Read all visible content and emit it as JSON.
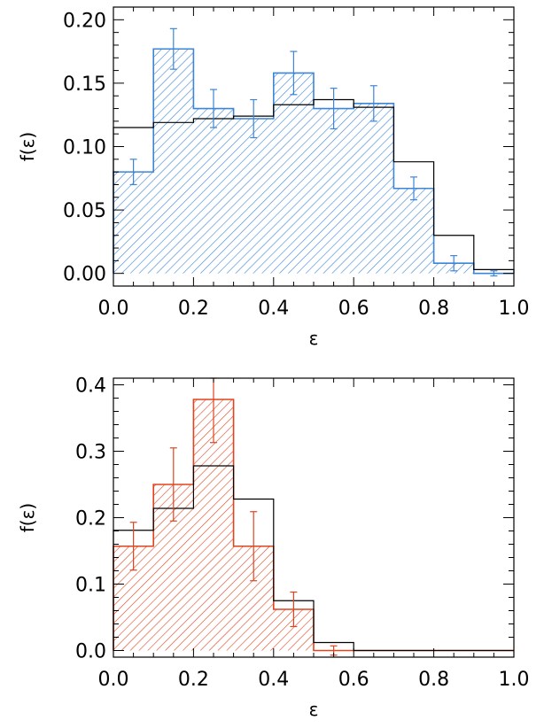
{
  "chart_data": [
    {
      "type": "bar",
      "subtype": "histogram",
      "xlabel": "ε",
      "ylabel": "f(ε)",
      "xlim": [
        0.0,
        1.0
      ],
      "ylim": [
        -0.01,
        0.21
      ],
      "xticks": [
        "0.0",
        "0.2",
        "0.4",
        "0.6",
        "0.8",
        "1.0"
      ],
      "yticks": [
        "0.00",
        "0.05",
        "0.10",
        "0.15",
        "0.20"
      ],
      "bin_edges": [
        0.0,
        0.1,
        0.2,
        0.3,
        0.4,
        0.5,
        0.6,
        0.7,
        0.8,
        0.9,
        1.0
      ],
      "series": [
        {
          "style": "hatched",
          "color": "#3d85d6",
          "values": [
            0.08,
            0.177,
            0.13,
            0.122,
            0.158,
            0.13,
            0.134,
            0.067,
            0.008,
            0.0
          ],
          "errors": [
            0.01,
            0.016,
            0.015,
            0.015,
            0.017,
            0.016,
            0.014,
            0.009,
            0.006,
            0.002
          ]
        },
        {
          "style": "outline",
          "color": "#000000",
          "values": [
            0.115,
            0.119,
            0.122,
            0.124,
            0.133,
            0.137,
            0.131,
            0.088,
            0.03,
            0.003
          ]
        }
      ]
    },
    {
      "type": "bar",
      "subtype": "histogram",
      "xlabel": "ε",
      "ylabel": "f(ε)",
      "xlim": [
        0.0,
        1.0
      ],
      "ylim": [
        -0.01,
        0.41
      ],
      "xticks": [
        "0.0",
        "0.2",
        "0.4",
        "0.6",
        "0.8",
        "1.0"
      ],
      "yticks": [
        "0.0",
        "0.1",
        "0.2",
        "0.3",
        "0.4"
      ],
      "bin_edges": [
        0.0,
        0.1,
        0.2,
        0.3,
        0.4,
        0.5,
        0.6,
        0.7,
        0.8,
        0.9,
        1.0
      ],
      "series": [
        {
          "style": "hatched",
          "color": "#e0441f",
          "values": [
            0.157,
            0.25,
            0.378,
            0.157,
            0.062,
            0.0,
            0.0,
            0.0,
            0.0,
            0.0
          ],
          "errors": [
            0.036,
            0.055,
            0.065,
            0.052,
            0.026,
            0.007,
            0.0,
            0.0,
            0.0,
            0.0
          ]
        },
        {
          "style": "outline",
          "color": "#000000",
          "values": [
            0.181,
            0.214,
            0.278,
            0.228,
            0.075,
            0.012,
            0.0,
            0.0,
            0.0,
            0.0
          ]
        }
      ]
    }
  ]
}
